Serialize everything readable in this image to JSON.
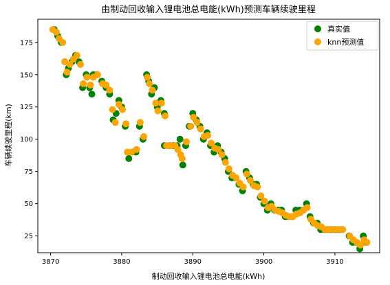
{
  "chart_data": {
    "type": "scatter",
    "title": "由制动回收输入锂电池总电能(kWh)预测车辆续驶里程",
    "xlabel": "制动回收输入锂电池总电能(kWh)",
    "ylabel": "车辆续驶里程(km)",
    "xlim": [
      3868.2,
      3916.3
    ],
    "ylim": [
      12,
      193
    ],
    "xticks": [
      3870,
      3880,
      3890,
      3900,
      3910
    ],
    "yticks": [
      25,
      50,
      75,
      100,
      125,
      150,
      175
    ],
    "legend_position": "top-right",
    "colors": {
      "actual": "#008000",
      "knn": "#ffa500"
    },
    "series": [
      {
        "name": "真实值",
        "points": [
          [
            3870.5,
            185
          ],
          [
            3871.0,
            180
          ],
          [
            3871.5,
            175
          ],
          [
            3872.0,
            160
          ],
          [
            3872.2,
            150
          ],
          [
            3872.5,
            155
          ],
          [
            3873.0,
            160
          ],
          [
            3873.5,
            165
          ],
          [
            3874.0,
            160
          ],
          [
            3874.5,
            140
          ],
          [
            3875.0,
            150
          ],
          [
            3875.5,
            140
          ],
          [
            3875.8,
            135
          ],
          [
            3876.0,
            150
          ],
          [
            3876.5,
            150
          ],
          [
            3877.2,
            145
          ],
          [
            3877.8,
            140
          ],
          [
            3878.3,
            135
          ],
          [
            3878.8,
            115
          ],
          [
            3879.2,
            120
          ],
          [
            3879.6,
            130
          ],
          [
            3880.0,
            125
          ],
          [
            3880.5,
            110
          ],
          [
            3881.0,
            85
          ],
          [
            3881.5,
            90
          ],
          [
            3882.0,
            90
          ],
          [
            3882.5,
            110
          ],
          [
            3883.0,
            100
          ],
          [
            3883.5,
            150
          ],
          [
            3883.8,
            145
          ],
          [
            3884.2,
            135
          ],
          [
            3884.6,
            140
          ],
          [
            3885.0,
            125
          ],
          [
            3885.5,
            130
          ],
          [
            3886.0,
            120
          ],
          [
            3886.0,
            95
          ],
          [
            3886.8,
            95
          ],
          [
            3887.3,
            95
          ],
          [
            3887.8,
            95
          ],
          [
            3888.2,
            100
          ],
          [
            3888.6,
            80
          ],
          [
            3889.0,
            95
          ],
          [
            3889.5,
            110
          ],
          [
            3890.0,
            120
          ],
          [
            3890.5,
            115
          ],
          [
            3891.0,
            110
          ],
          [
            3891.5,
            100
          ],
          [
            3892.0,
            105
          ],
          [
            3892.5,
            95
          ],
          [
            3893.0,
            90
          ],
          [
            3893.5,
            95
          ],
          [
            3894.0,
            90
          ],
          [
            3894.5,
            85
          ],
          [
            3895.0,
            75
          ],
          [
            3895.5,
            70
          ],
          [
            3896.0,
            70
          ],
          [
            3896.5,
            65
          ],
          [
            3897.0,
            60
          ],
          [
            3897.5,
            75
          ],
          [
            3898.0,
            70
          ],
          [
            3898.5,
            65
          ],
          [
            3899.0,
            65
          ],
          [
            3899.5,
            55
          ],
          [
            3900.0,
            50
          ],
          [
            3900.5,
            45
          ],
          [
            3901.0,
            50
          ],
          [
            3901.5,
            45
          ],
          [
            3902.0,
            45
          ],
          [
            3902.5,
            45
          ],
          [
            3903.0,
            40
          ],
          [
            3903.5,
            40
          ],
          [
            3904.0,
            40
          ],
          [
            3904.5,
            45
          ],
          [
            3905.0,
            45
          ],
          [
            3905.5,
            45
          ],
          [
            3906.0,
            50
          ],
          [
            3906.5,
            40
          ],
          [
            3907.0,
            35
          ],
          [
            3907.5,
            35
          ],
          [
            3908.0,
            30
          ],
          [
            3908.5,
            30
          ],
          [
            3909.0,
            30
          ],
          [
            3909.5,
            30
          ],
          [
            3910.0,
            30
          ],
          [
            3910.5,
            30
          ],
          [
            3911.0,
            30
          ],
          [
            3912.0,
            25
          ],
          [
            3912.5,
            20
          ],
          [
            3913.0,
            20
          ],
          [
            3913.5,
            15
          ],
          [
            3914.0,
            25
          ],
          [
            3914.4,
            20
          ]
        ]
      },
      {
        "name": "knn预测值",
        "points": [
          [
            3870.3,
            185
          ],
          [
            3870.8,
            183
          ],
          [
            3871.2,
            178
          ],
          [
            3871.7,
            175
          ],
          [
            3872.0,
            160
          ],
          [
            3872.3,
            152
          ],
          [
            3872.7,
            158
          ],
          [
            3873.2,
            162
          ],
          [
            3873.7,
            165
          ],
          [
            3874.2,
            158
          ],
          [
            3874.6,
            143
          ],
          [
            3875.1,
            148
          ],
          [
            3875.6,
            142
          ],
          [
            3876.0,
            148
          ],
          [
            3876.6,
            150
          ],
          [
            3877.3,
            143
          ],
          [
            3877.8,
            142
          ],
          [
            3878.3,
            138
          ],
          [
            3878.7,
            123
          ],
          [
            3879.1,
            113
          ],
          [
            3879.6,
            127
          ],
          [
            3880.1,
            123
          ],
          [
            3880.6,
            112
          ],
          [
            3880.8,
            90
          ],
          [
            3881.4,
            90
          ],
          [
            3882.1,
            92
          ],
          [
            3882.6,
            113
          ],
          [
            3883.1,
            102
          ],
          [
            3883.6,
            148
          ],
          [
            3883.9,
            143
          ],
          [
            3884.3,
            138
          ],
          [
            3884.8,
            128
          ],
          [
            3885.1,
            122
          ],
          [
            3885.6,
            128
          ],
          [
            3886.1,
            118
          ],
          [
            3886.3,
            95
          ],
          [
            3886.9,
            95
          ],
          [
            3887.5,
            95
          ],
          [
            3887.9,
            92
          ],
          [
            3888.3,
            88
          ],
          [
            3888.5,
            85
          ],
          [
            3889.1,
            98
          ],
          [
            3889.7,
            110
          ],
          [
            3890.1,
            117
          ],
          [
            3890.6,
            113
          ],
          [
            3891.1,
            108
          ],
          [
            3891.6,
            102
          ],
          [
            3892.1,
            103
          ],
          [
            3892.6,
            97
          ],
          [
            3893.1,
            93
          ],
          [
            3893.6,
            92
          ],
          [
            3894.1,
            88
          ],
          [
            3894.6,
            82
          ],
          [
            3895.1,
            77
          ],
          [
            3895.6,
            72
          ],
          [
            3896.1,
            70
          ],
          [
            3896.6,
            66
          ],
          [
            3897.1,
            63
          ],
          [
            3897.6,
            73
          ],
          [
            3898.1,
            68
          ],
          [
            3898.6,
            64
          ],
          [
            3899.1,
            63
          ],
          [
            3899.6,
            56
          ],
          [
            3900.1,
            52
          ],
          [
            3900.6,
            47
          ],
          [
            3901.1,
            48
          ],
          [
            3901.6,
            45
          ],
          [
            3902.1,
            44
          ],
          [
            3902.6,
            43
          ],
          [
            3903.1,
            41
          ],
          [
            3903.6,
            40
          ],
          [
            3904.1,
            40
          ],
          [
            3904.6,
            42
          ],
          [
            3905.1,
            43
          ],
          [
            3905.6,
            45
          ],
          [
            3906.1,
            47
          ],
          [
            3906.6,
            38
          ],
          [
            3907.1,
            35
          ],
          [
            3907.6,
            33
          ],
          [
            3908.1,
            32
          ],
          [
            3908.6,
            30
          ],
          [
            3909.1,
            30
          ],
          [
            3909.6,
            30
          ],
          [
            3910.1,
            30
          ],
          [
            3910.6,
            30
          ],
          [
            3911.1,
            30
          ],
          [
            3912.1,
            25
          ],
          [
            3912.6,
            22
          ],
          [
            3913.1,
            20
          ],
          [
            3913.6,
            18
          ],
          [
            3914.1,
            22
          ],
          [
            3914.5,
            20
          ]
        ]
      }
    ]
  }
}
